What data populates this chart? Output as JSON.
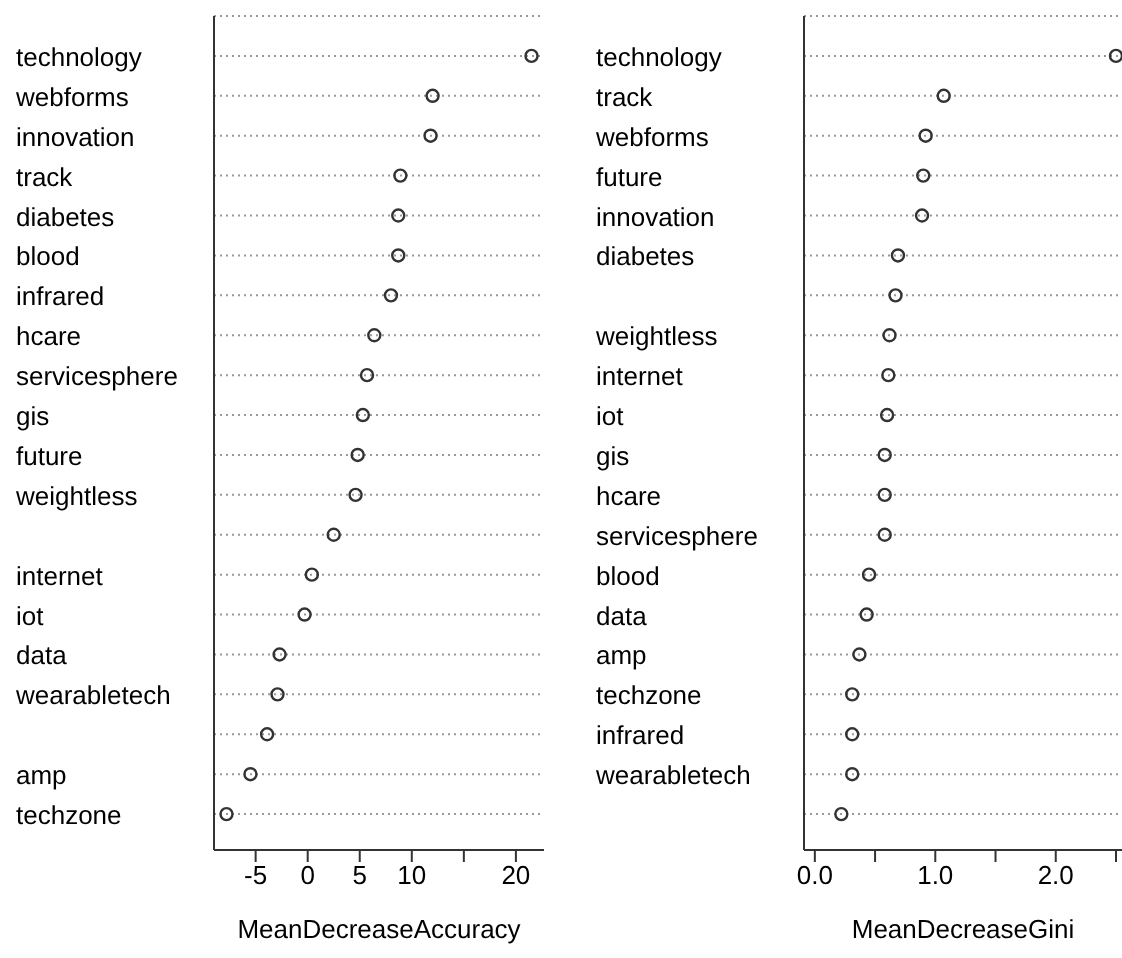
{
  "chart_data": [
    {
      "type": "scatter",
      "orientation": "horizontal",
      "xlabel": "MeanDecreaseAccuracy",
      "categories": [
        "technology",
        "webforms",
        "innovation",
        "track",
        "diabetes",
        "blood",
        "infrared",
        "hcare",
        "servicesphere",
        "gis",
        "future",
        "weightless",
        null,
        "internet",
        "iot",
        "data",
        "wearabletech",
        null,
        "amp",
        "techzone"
      ],
      "values": [
        21.5,
        12.0,
        11.8,
        8.9,
        8.7,
        8.7,
        8.0,
        6.4,
        5.7,
        5.3,
        4.8,
        4.6,
        2.5,
        0.4,
        -0.3,
        -2.7,
        -2.9,
        -3.9,
        -5.5,
        -7.8
      ],
      "color": "#333333",
      "marker": "circle",
      "grid": "y",
      "xlim": [
        -9,
        22.7
      ],
      "xticks": [
        -5,
        0,
        5,
        10,
        {
          "value": 15,
          "label": null
        },
        20
      ]
    },
    {
      "type": "scatter",
      "orientation": "horizontal",
      "xlabel": "MeanDecreaseGini",
      "categories": [
        "technology",
        "track",
        "webforms",
        "future",
        "innovation",
        "diabetes",
        null,
        "weightless",
        "internet",
        "iot",
        "gis",
        "hcare",
        "servicesphere",
        "blood",
        "data",
        "amp",
        "techzone",
        "infrared",
        "wearabletech",
        null
      ],
      "values": [
        2.5,
        1.07,
        0.92,
        0.9,
        0.89,
        0.69,
        0.67,
        0.62,
        0.61,
        0.6,
        0.58,
        0.58,
        0.58,
        0.45,
        0.43,
        0.37,
        0.31,
        0.31,
        0.31,
        0.22
      ],
      "color": "#333333",
      "marker": "circle",
      "grid": "y",
      "xlim": [
        -0.09,
        2.55
      ],
      "xticks": [
        {
          "value": 0,
          "label": "0.0"
        },
        {
          "value": 0.5,
          "label": null
        },
        {
          "value": 1,
          "label": "1.0"
        },
        {
          "value": 1.5,
          "label": null
        },
        {
          "value": 2,
          "label": "2.0"
        },
        {
          "value": 2.5,
          "label": null
        }
      ]
    }
  ]
}
